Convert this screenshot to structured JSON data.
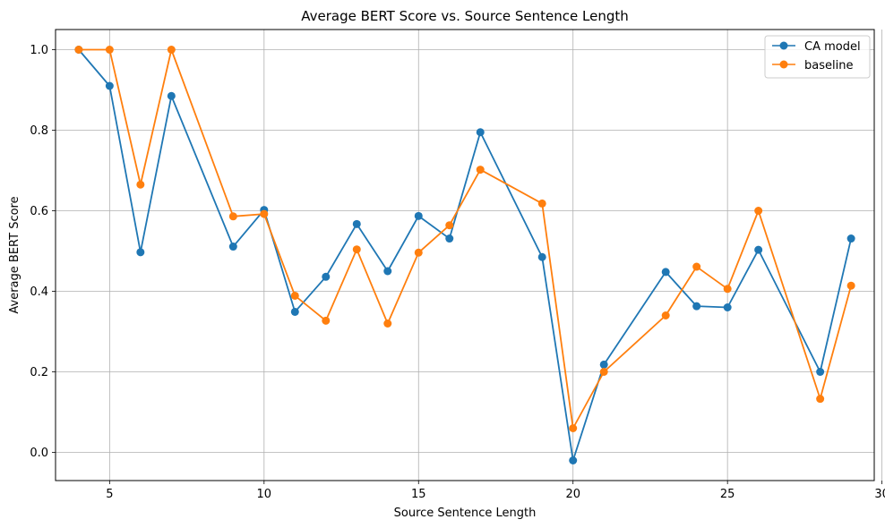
{
  "chart_data": {
    "type": "line",
    "title": "Average BERT Score vs. Source Sentence Length",
    "xlabel": "Source Sentence Length",
    "ylabel": "Average BERT Score",
    "xlim": [
      3.25,
      29.75
    ],
    "ylim": [
      -0.07,
      1.05
    ],
    "xticks": [
      5,
      10,
      15,
      20,
      25,
      30
    ],
    "yticks": [
      0.0,
      0.2,
      0.4,
      0.6,
      0.8,
      1.0
    ],
    "xtick_labels": [
      "5",
      "10",
      "15",
      "20",
      "25",
      "30"
    ],
    "ytick_labels": [
      "0.0",
      "0.2",
      "0.4",
      "0.6",
      "0.8",
      "1.0"
    ],
    "grid": true,
    "legend_position": "top-right",
    "series": [
      {
        "name": "CA model",
        "color": "#1f77b4",
        "x": [
          4,
          5,
          6,
          7,
          9,
          10,
          11,
          12,
          13,
          14,
          15,
          16,
          17,
          19,
          20,
          21,
          23,
          24,
          25,
          26,
          28,
          29
        ],
        "y": [
          1.0,
          0.91,
          0.497,
          0.885,
          0.511,
          0.602,
          0.349,
          0.436,
          0.567,
          0.45,
          0.587,
          0.531,
          0.795,
          0.485,
          -0.02,
          0.218,
          0.448,
          0.363,
          0.36,
          0.503,
          0.2,
          0.531
        ]
      },
      {
        "name": "baseline",
        "color": "#ff7f0e",
        "x": [
          4,
          5,
          6,
          7,
          9,
          10,
          11,
          12,
          13,
          14,
          15,
          16,
          17,
          19,
          20,
          21,
          23,
          24,
          25,
          26,
          28,
          29
        ],
        "y": [
          1.0,
          1.0,
          0.665,
          1.0,
          0.586,
          0.592,
          0.389,
          0.327,
          0.504,
          0.32,
          0.496,
          0.564,
          0.702,
          0.618,
          0.06,
          0.2,
          0.34,
          0.461,
          0.406,
          0.6,
          0.133,
          0.414
        ]
      }
    ]
  }
}
